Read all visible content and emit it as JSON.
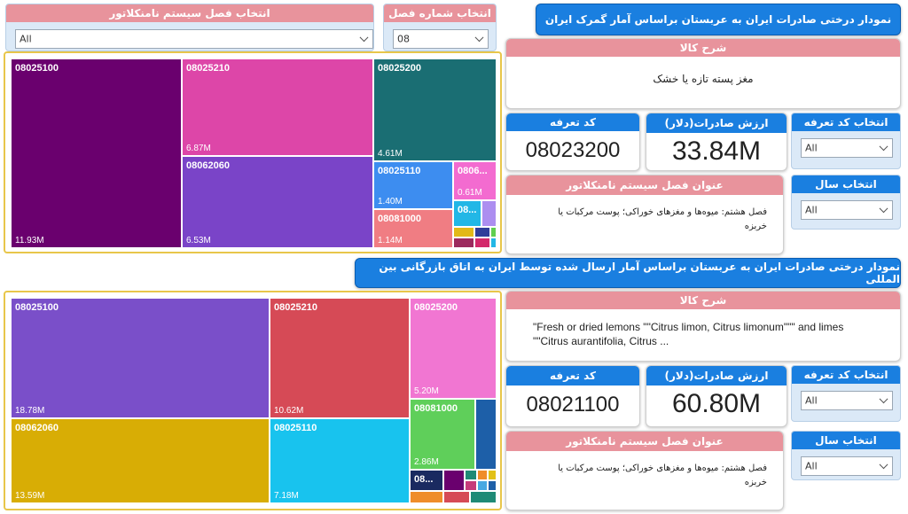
{
  "top_filters": {
    "nomenclature_label": "انتخاب فصل سیستم نامنکلاتور",
    "nomenclature_value": "All",
    "chapter_label": "انتخاب شماره فصل",
    "chapter_value": "08"
  },
  "section1": {
    "title": "نمودار درختی صادرات ایران به عربستان براساس آمار گمرک ایران",
    "goods_desc_label": "شرح کالا",
    "goods_desc_value": "مغز پسته تازه یا خشک",
    "tariff_code_label": "کد تعرفه",
    "tariff_code_value": "08023200",
    "export_value_label": "ارزش صادرات(دلار)",
    "export_value": "33.84M",
    "select_tariff_label": "انتخاب کد تعرفه",
    "select_tariff_value": "All",
    "nomenclature_title_label": "عنوان فصل سیستم نامنکلاتور",
    "nomenclature_title_value": "فصل هشتم: میوه‌ها و مغزهای خوراکی؛ پوست مرکبات یا خربزه",
    "select_year_label": "انتخاب سال",
    "select_year_value": "All"
  },
  "section2": {
    "title": "نمودار درختی صادرات ایران به عربستان براساس آمار ارسال شده توسط ایران به اتاق بازرگانی بین المللی",
    "goods_desc_label": "شرح کالا",
    "goods_desc_value": "\"Fresh or dried lemons \"\"Citrus limon, Citrus limonum\"\"\" and limes \"\"Citrus aurantifolia, Citrus ...",
    "tariff_code_label": "کد تعرفه",
    "tariff_code_value": "08021100",
    "export_value_label": "ارزش صادرات(دلار)",
    "export_value": "60.80M",
    "select_tariff_label": "انتخاب کد تعرفه",
    "select_tariff_value": "All",
    "nomenclature_title_label": "عنوان فصل سیستم نامنکلاتور",
    "nomenclature_title_value": "فصل هشتم: میوه‌ها و مغزهای خوراکی؛ پوست مرکبات یا خربزه",
    "select_year_label": "انتخاب سال",
    "select_year_value": "All"
  },
  "treemap1": {
    "tiles": [
      {
        "code": "08025100",
        "value": "11.93M"
      },
      {
        "code": "08025210",
        "value": "6.87M"
      },
      {
        "code": "08062060",
        "value": "6.53M"
      },
      {
        "code": "08025200",
        "value": "4.61M"
      },
      {
        "code": "08025110",
        "value": "1.40M"
      },
      {
        "code": "08081000",
        "value": "1.14M"
      },
      {
        "code": "0806...",
        "value": "0.61M"
      },
      {
        "code": "08...",
        "value": ""
      }
    ],
    "colors": [
      "#6a006e",
      "#dd46a8",
      "#7a44c8",
      "#1a6e73",
      "#3d8df0",
      "#f07d83",
      "#f36bd0",
      "#22b7e6",
      "#ac8ef0",
      "#e2b918",
      "#2f3d9a",
      "#5fcf50",
      "#9c2a5e",
      "#d3296b"
    ]
  },
  "treemap2": {
    "tiles": [
      {
        "code": "08025100",
        "value": "18.78M"
      },
      {
        "code": "08025210",
        "value": "10.62M"
      },
      {
        "code": "08025200",
        "value": "5.20M"
      },
      {
        "code": "08062060",
        "value": "13.59M"
      },
      {
        "code": "08025110",
        "value": "7.18M"
      },
      {
        "code": "08081000",
        "value": "2.86M"
      },
      {
        "code": "08...",
        "value": ""
      }
    ],
    "colors": [
      "#7a4fc9",
      "#d64a56",
      "#f176d2",
      "#d8ad05",
      "#18c3ee",
      "#5fcf5a",
      "#1d5fa8",
      "#1a2a60",
      "#6a006e",
      "#c63a7a",
      "#ef8d2a",
      "#1f8a76",
      "#e2c118",
      "#47a8e2"
    ]
  }
}
